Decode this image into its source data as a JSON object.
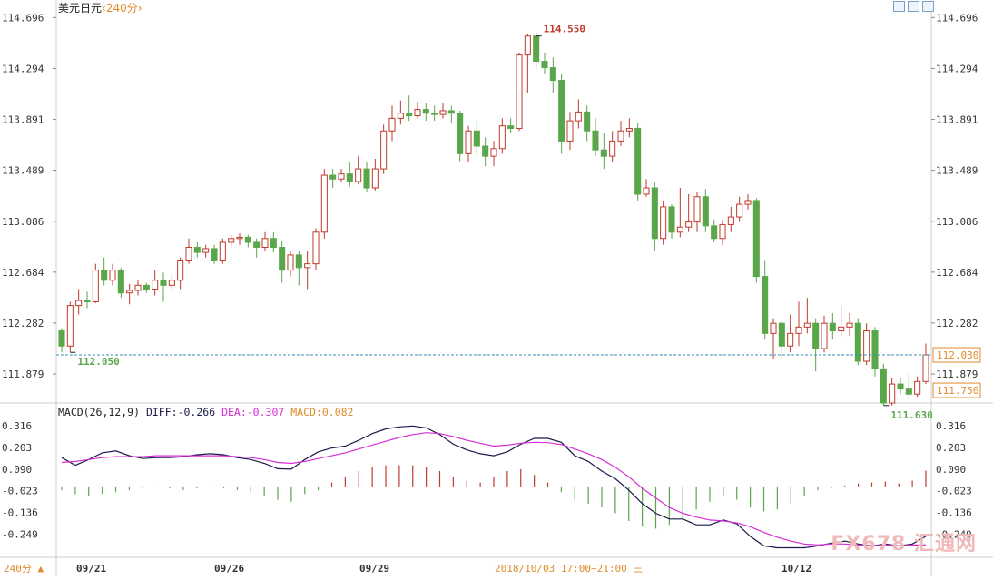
{
  "header": {
    "symbol": "美元日元",
    "period": "240分"
  },
  "toolbar": {
    "period_button": "240分"
  },
  "macd_legend": {
    "params": "MACD(26,12,9)",
    "diff": "DIFF:-0.266",
    "dea": "DEA:-0.307",
    "macd": "MACD:0.082"
  },
  "watermark": "FX678 汇通网",
  "colors": {
    "up": "#c0392b",
    "down": "#5aa64a",
    "diff_line": "#1a1a4a",
    "dea_line": "#d62fd6",
    "macd_up": "#c0392b",
    "macd_down": "#5aa64a",
    "current_price": "#e08b2c",
    "low_price": "#e08b2c"
  },
  "chart_data": [
    {
      "type": "candlestick",
      "title": "美元日元 240分",
      "x_labels": [
        "09/21",
        "09/26",
        "09/29",
        "10/12"
      ],
      "y_ticks": [
        114.696,
        114.294,
        113.891,
        113.489,
        113.086,
        112.684,
        112.282,
        111.879
      ],
      "ylim": [
        111.65,
        114.72
      ],
      "current_price": "112.030",
      "low_marker": "111.750",
      "annotations": [
        {
          "label": "114.550",
          "kind": "high"
        },
        {
          "label": "112.050",
          "kind": "low"
        },
        {
          "label": "111.630",
          "kind": "low"
        }
      ],
      "cursor_label": "2018/10/03 17:00~21:00 三",
      "candles": [
        [
          112.22,
          112.1,
          112.24,
          112.05
        ],
        [
          112.1,
          112.42,
          112.45,
          112.05
        ],
        [
          112.42,
          112.46,
          112.55,
          112.35
        ],
        [
          112.46,
          112.45,
          112.53,
          112.4
        ],
        [
          112.45,
          112.7,
          112.75,
          112.44
        ],
        [
          112.7,
          112.62,
          112.8,
          112.58
        ],
        [
          112.62,
          112.7,
          112.75,
          112.58
        ],
        [
          112.7,
          112.52,
          112.72,
          112.48
        ],
        [
          112.52,
          112.54,
          112.59,
          112.43
        ],
        [
          112.54,
          112.58,
          112.62,
          112.5
        ],
        [
          112.58,
          112.55,
          112.6,
          112.52
        ],
        [
          112.55,
          112.62,
          112.7,
          112.5
        ],
        [
          112.62,
          112.58,
          112.68,
          112.45
        ],
        [
          112.58,
          112.62,
          112.66,
          112.55
        ],
        [
          112.62,
          112.78,
          112.8,
          112.55
        ],
        [
          112.78,
          112.88,
          112.95,
          112.75
        ],
        [
          112.88,
          112.84,
          112.92,
          112.8
        ],
        [
          112.84,
          112.87,
          112.9,
          112.8
        ],
        [
          112.87,
          112.78,
          112.9,
          112.75
        ],
        [
          112.78,
          112.92,
          112.95,
          112.75
        ],
        [
          112.92,
          112.95,
          112.98,
          112.88
        ],
        [
          112.95,
          112.96,
          112.99,
          112.9
        ],
        [
          112.96,
          112.92,
          112.98,
          112.88
        ],
        [
          112.92,
          112.88,
          112.95,
          112.8
        ],
        [
          112.88,
          112.95,
          113.0,
          112.85
        ],
        [
          112.95,
          112.88,
          113.0,
          112.84
        ],
        [
          112.88,
          112.7,
          112.93,
          112.6
        ],
        [
          112.7,
          112.82,
          112.85,
          112.65
        ],
        [
          112.82,
          112.72,
          112.85,
          112.58
        ],
        [
          112.72,
          112.75,
          112.85,
          112.55
        ],
        [
          112.75,
          113.0,
          113.03,
          112.7
        ],
        [
          113.0,
          113.45,
          113.5,
          112.95
        ],
        [
          113.45,
          113.42,
          113.5,
          113.35
        ],
        [
          113.42,
          113.46,
          113.5,
          113.4
        ],
        [
          113.46,
          113.4,
          113.55,
          113.36
        ],
        [
          113.4,
          113.5,
          113.6,
          113.38
        ],
        [
          113.5,
          113.35,
          113.55,
          113.32
        ],
        [
          113.35,
          113.5,
          113.58,
          113.33
        ],
        [
          113.5,
          113.8,
          113.85,
          113.46
        ],
        [
          113.8,
          113.9,
          114.0,
          113.72
        ],
        [
          113.9,
          113.94,
          114.04,
          113.85
        ],
        [
          113.94,
          113.92,
          114.08,
          113.88
        ],
        [
          113.92,
          113.97,
          114.03,
          113.9
        ],
        [
          113.97,
          113.94,
          114.02,
          113.88
        ],
        [
          113.94,
          113.93,
          114.0,
          113.88
        ],
        [
          113.93,
          113.96,
          114.02,
          113.9
        ],
        [
          113.96,
          113.94,
          114.0,
          113.86
        ],
        [
          113.94,
          113.62,
          113.96,
          113.56
        ],
        [
          113.62,
          113.8,
          113.84,
          113.55
        ],
        [
          113.8,
          113.68,
          113.88,
          113.6
        ],
        [
          113.68,
          113.6,
          113.75,
          113.52
        ],
        [
          113.6,
          113.66,
          113.72,
          113.52
        ],
        [
          113.66,
          113.84,
          113.9,
          113.62
        ],
        [
          113.84,
          113.82,
          113.9,
          113.78
        ],
        [
          113.82,
          114.4,
          114.42,
          113.8
        ],
        [
          114.4,
          114.55,
          114.57,
          114.1
        ],
        [
          114.55,
          114.35,
          114.58,
          114.28
        ],
        [
          114.35,
          114.3,
          114.42,
          114.25
        ],
        [
          114.3,
          114.2,
          114.38,
          114.1
        ],
        [
          114.2,
          113.72,
          114.25,
          113.62
        ],
        [
          113.72,
          113.88,
          113.95,
          113.65
        ],
        [
          113.88,
          113.95,
          114.05,
          113.82
        ],
        [
          113.95,
          113.8,
          114.0,
          113.72
        ],
        [
          113.8,
          113.65,
          113.9,
          113.6
        ],
        [
          113.65,
          113.6,
          113.78,
          113.5
        ],
        [
          113.6,
          113.72,
          113.8,
          113.55
        ],
        [
          113.72,
          113.8,
          113.88,
          113.68
        ],
        [
          113.8,
          113.82,
          113.9,
          113.75
        ],
        [
          113.82,
          113.3,
          113.86,
          113.25
        ],
        [
          113.3,
          113.35,
          113.42,
          113.28
        ],
        [
          113.35,
          112.95,
          113.4,
          112.85
        ],
        [
          112.95,
          113.2,
          113.25,
          112.9
        ],
        [
          113.2,
          113.0,
          113.22,
          112.95
        ],
        [
          113.0,
          113.04,
          113.35,
          112.96
        ],
        [
          113.04,
          113.08,
          113.3,
          113.0
        ],
        [
          113.08,
          113.28,
          113.32,
          113.0
        ],
        [
          113.28,
          113.05,
          113.34,
          113.0
        ],
        [
          113.05,
          112.95,
          113.1,
          112.92
        ],
        [
          112.95,
          113.06,
          113.1,
          112.9
        ],
        [
          113.06,
          113.12,
          113.2,
          113.0
        ],
        [
          113.12,
          113.22,
          113.28,
          113.08
        ],
        [
          113.22,
          113.25,
          113.3,
          113.18
        ],
        [
          113.25,
          112.65,
          113.27,
          112.6
        ],
        [
          112.65,
          112.2,
          112.78,
          112.15
        ],
        [
          112.2,
          112.28,
          112.32,
          112.0
        ],
        [
          112.28,
          112.1,
          112.3,
          112.0
        ],
        [
          112.1,
          112.2,
          112.35,
          112.05
        ],
        [
          112.2,
          112.25,
          112.45,
          112.1
        ],
        [
          112.25,
          112.28,
          112.48,
          112.2
        ],
        [
          112.28,
          112.08,
          112.32,
          111.9
        ],
        [
          112.08,
          112.28,
          112.34,
          112.05
        ],
        [
          112.28,
          112.22,
          112.36,
          112.15
        ],
        [
          112.22,
          112.25,
          112.42,
          112.18
        ],
        [
          112.25,
          112.28,
          112.36,
          112.18
        ],
        [
          112.28,
          111.98,
          112.32,
          111.95
        ],
        [
          111.98,
          112.22,
          112.28,
          111.95
        ],
        [
          112.22,
          111.92,
          112.25,
          111.86
        ],
        [
          111.92,
          111.65,
          111.96,
          111.63
        ],
        [
          111.65,
          111.8,
          111.85,
          111.63
        ],
        [
          111.8,
          111.76,
          111.85,
          111.72
        ],
        [
          111.76,
          111.72,
          111.88,
          111.68
        ],
        [
          111.72,
          111.82,
          111.86,
          111.7
        ],
        [
          111.82,
          112.03,
          112.12,
          111.8
        ]
      ]
    },
    {
      "type": "line",
      "title": "MACD(26,12,9)",
      "y_ticks": [
        0.316,
        0.203,
        0.09,
        -0.023,
        -0.136,
        -0.249
      ],
      "ylim": [
        -0.36,
        0.34
      ],
      "series": [
        {
          "name": "DIFF",
          "values": [
            0.15,
            0.11,
            0.14,
            0.175,
            0.185,
            0.16,
            0.145,
            0.15,
            0.15,
            0.155,
            0.165,
            0.17,
            0.165,
            0.15,
            0.14,
            0.12,
            0.092,
            0.09,
            0.14,
            0.18,
            0.2,
            0.21,
            0.24,
            0.275,
            0.3,
            0.31,
            0.315,
            0.305,
            0.27,
            0.22,
            0.19,
            0.17,
            0.16,
            0.18,
            0.22,
            0.25,
            0.25,
            0.23,
            0.16,
            0.13,
            0.08,
            0.04,
            -0.02,
            -0.09,
            -0.14,
            -0.17,
            -0.17,
            -0.2,
            -0.2,
            -0.175,
            -0.195,
            -0.26,
            -0.31,
            -0.32,
            -0.32,
            -0.32,
            -0.31,
            -0.295,
            -0.285,
            -0.3,
            -0.31,
            -0.3,
            -0.31,
            -0.3,
            -0.26
          ]
        },
        {
          "name": "DEA",
          "values": [
            0.125,
            0.13,
            0.14,
            0.15,
            0.155,
            0.155,
            0.155,
            0.16,
            0.16,
            0.16,
            0.16,
            0.16,
            0.16,
            0.155,
            0.15,
            0.14,
            0.125,
            0.12,
            0.13,
            0.145,
            0.16,
            0.175,
            0.195,
            0.215,
            0.235,
            0.255,
            0.27,
            0.28,
            0.275,
            0.26,
            0.24,
            0.225,
            0.21,
            0.215,
            0.225,
            0.23,
            0.228,
            0.218,
            0.195,
            0.17,
            0.14,
            0.1,
            0.05,
            -0.01,
            -0.06,
            -0.11,
            -0.14,
            -0.16,
            -0.175,
            -0.18,
            -0.19,
            -0.21,
            -0.24,
            -0.265,
            -0.285,
            -0.3,
            -0.305,
            -0.3,
            -0.3,
            -0.305,
            -0.31,
            -0.305,
            -0.31,
            -0.305,
            -0.305
          ]
        },
        {
          "name": "MACD",
          "values": [
            -0.02,
            -0.04,
            -0.05,
            -0.04,
            -0.03,
            -0.02,
            -0.01,
            -0.005,
            -0.01,
            -0.02,
            -0.01,
            -0.005,
            -0.01,
            -0.02,
            -0.03,
            -0.05,
            -0.07,
            -0.08,
            -0.04,
            -0.02,
            0.02,
            0.05,
            0.08,
            0.1,
            0.11,
            0.11,
            0.11,
            0.1,
            0.08,
            0.05,
            0.03,
            0.02,
            0.05,
            0.08,
            0.09,
            0.06,
            0.02,
            -0.03,
            -0.07,
            -0.09,
            -0.11,
            -0.14,
            -0.18,
            -0.21,
            -0.22,
            -0.2,
            -0.17,
            -0.12,
            -0.08,
            -0.05,
            -0.07,
            -0.11,
            -0.13,
            -0.12,
            -0.09,
            -0.05,
            -0.02,
            -0.01,
            0.005,
            0.015,
            0.02,
            0.025,
            0.015,
            0.03,
            0.082
          ]
        }
      ]
    }
  ],
  "x_tick_labels": [
    "09/21",
    "09/26",
    "09/29",
    "10/12"
  ]
}
